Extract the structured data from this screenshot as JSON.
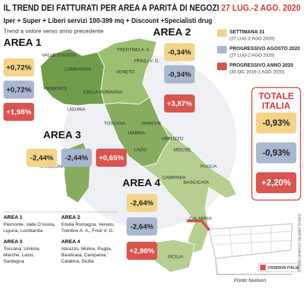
{
  "header": {
    "title": "IL TREND DEI FATTURATI PER AREA A PARITÀ DI NEGOZI",
    "title_date": "27 LUG.-2 AGO. 2020",
    "subtitle": "Iper + Super + Liberi servizi 100-399 mq + Discount +Specialisti drug",
    "note": "Trend a valore verso anno precedente"
  },
  "legend": [
    {
      "label": "SETTIMANA 31",
      "detail": "(27 LUG-2 AGO 2020)",
      "color": "#f3d48a"
    },
    {
      "label": "PROGRESSIVO AGOSTO 2020",
      "detail": "(27 LUG-2 AGO 2020)",
      "color": "#a9b7d0"
    },
    {
      "label": "PROGRESSIVO ANNO 2020",
      "detail": "(30 DIC 2019-2 AGO 2020)",
      "color": "#d9534f"
    }
  ],
  "areas": [
    {
      "name": "AREA 1",
      "values": [
        "+0,72%",
        "+0,72%",
        "+1,98%"
      ]
    },
    {
      "name": "AREA 2",
      "values": [
        "-0,34%",
        "-0,34%",
        "+3,87%"
      ]
    },
    {
      "name": "AREA 3",
      "values": [
        "-2,44%",
        "-2,44%",
        "+0,65%"
      ]
    },
    {
      "name": "AREA 4",
      "values": [
        "-2,64%",
        "-2,64%",
        "+2,90%"
      ]
    }
  ],
  "total": {
    "title_lines": [
      "TOTALE",
      "ITALIA"
    ],
    "values": [
      "-0,93%",
      "-0,93%",
      "+2,20%"
    ]
  },
  "regions": [
    "VALLE D'AOSTA",
    "LOMBARDIA",
    "TRENTINO A. A.",
    "FRIULI V. G.",
    "VENETO",
    "PIEMONTE",
    "EMILIA ROMAGNA",
    "LIGURIA",
    "TOSCANA",
    "MARCHE",
    "UMBRIA",
    "LAZIO",
    "ABRUZZO",
    "MOLISE",
    "SARDEGNA",
    "CAMPANIA",
    "PUGLIA",
    "BASILICATA",
    "CALABRIA",
    "SICILIA"
  ],
  "area_key": [
    {
      "title": "AREA 1",
      "lines": [
        "Piemonte, Valle D'Aosta,",
        "Liguria, Lombardia"
      ]
    },
    {
      "title": "AREA 2",
      "lines": [
        "Emilia Romagna, Veneto,",
        "Trentino A. A., Friuli V. G."
      ]
    },
    {
      "title": "AREA 3",
      "lines": [
        "Toscana, Umbria,",
        "Marche, Lazio,",
        "Sardegna"
      ]
    },
    {
      "title": "AREA 4",
      "lines": [
        "Abruzzo, Molise, Puglia,",
        "Basilicata, Campania,",
        "Calabria, Sicilia"
      ]
    }
  ],
  "credits": {
    "studio": "STUDIO GRAFICO SILVANO DI MEO",
    "source": "Fonte Nielsen",
    "logo": "OSSERVA ITALIA"
  }
}
